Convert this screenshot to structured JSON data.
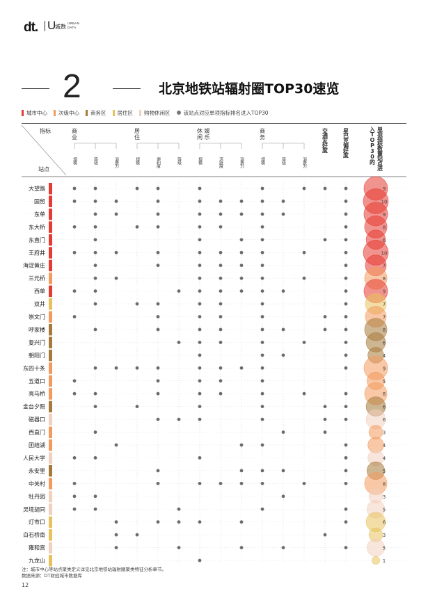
{
  "header": {
    "logo_dt": "dt.",
    "logo_u": "U",
    "logo_cn": "城数",
    "logo_en_1": "URBAN",
    "logo_en_2": "DATA"
  },
  "section": {
    "number": "2",
    "title": "北京地铁站辐射圈TOP30速览"
  },
  "legend": {
    "items": [
      {
        "label": "城市中心",
        "color": "#e63b32"
      },
      {
        "label": "次级中心",
        "color": "#f39b5e"
      },
      {
        "label": "商务区",
        "color": "#a67a3b"
      },
      {
        "label": "居住区",
        "color": "#e7c25c"
      },
      {
        "label": "购物休闲区",
        "color": "#f2d0be"
      }
    ],
    "dot_label": "该站点对应单项指标排名进入TOP30"
  },
  "footnote": {
    "line1": "注：城市中心等站点聚类定义详见北京地铁站辐射圈聚类特征分析章节。",
    "line2": "数据来源：DT财经城市数据库"
  },
  "page_number": "12",
  "chart_data": {
    "type": "table",
    "corner_top": "指标",
    "corner_bottom": "站点",
    "groups": [
      {
        "label": "商业",
        "lines": [
          "商",
          "业"
        ],
        "span": [
          0,
          2
        ]
      },
      {
        "label": "居住",
        "lines": [
          "居",
          "住"
        ],
        "span": [
          3,
          5
        ]
      },
      {
        "label": "休闲娱乐",
        "lines": [
          "休 娱",
          "闲 乐"
        ],
        "span": [
          6,
          8
        ]
      },
      {
        "label": "商务",
        "lines": [
          "商",
          "务"
        ],
        "span": [
          9,
          11
        ]
      }
    ],
    "columns": [
      "规模",
      "等级",
      "消费力",
      "规模",
      "便利度",
      "等级",
      "规模",
      "活跃度",
      "消费力",
      "规模",
      "等级",
      "消费力",
      "交通友好度",
      "星巴克偏好度"
    ],
    "count_header": "单项指标数量站点进入TOP30的",
    "category_colors": {
      "城市中心": "#e63b32",
      "次级中心": "#f39b5e",
      "商务区": "#a67a3b",
      "居住区": "#e7c25c",
      "购物休闲区": "#f2d0be"
    },
    "rows": [
      {
        "station": "大望路",
        "category": "城市中心",
        "count": 9,
        "dots": [
          0,
          1,
          3,
          4,
          6,
          9,
          11,
          12,
          13
        ]
      },
      {
        "station": "国贸",
        "category": "城市中心",
        "count": 10,
        "dots": [
          0,
          1,
          2,
          4,
          6,
          7,
          8,
          9,
          10,
          13
        ]
      },
      {
        "station": "东单",
        "category": "城市中心",
        "count": 9,
        "dots": [
          1,
          2,
          4,
          6,
          7,
          8,
          9,
          10,
          13
        ]
      },
      {
        "station": "东大桥",
        "category": "城市中心",
        "count": 8,
        "dots": [
          0,
          1,
          3,
          4,
          6,
          7,
          9,
          13
        ]
      },
      {
        "station": "东直门",
        "category": "城市中心",
        "count": 6,
        "dots": [
          1,
          6,
          8,
          9,
          12,
          13
        ]
      },
      {
        "station": "王府井",
        "category": "城市中心",
        "count": 10,
        "dots": [
          0,
          1,
          2,
          4,
          6,
          7,
          8,
          9,
          11,
          13
        ]
      },
      {
        "station": "海淀黄庄",
        "category": "城市中心",
        "count": 7,
        "dots": [
          1,
          4,
          6,
          7,
          8,
          9,
          13
        ]
      },
      {
        "station": "三元桥",
        "category": "次级中心",
        "count": 8,
        "dots": [
          1,
          2,
          6,
          7,
          8,
          9,
          11,
          13
        ]
      },
      {
        "station": "西单",
        "category": "城市中心",
        "count": 9,
        "dots": [
          0,
          1,
          5,
          6,
          7,
          8,
          9,
          10,
          13
        ]
      },
      {
        "station": "双井",
        "category": "居住区",
        "count": 7,
        "dots": [
          1,
          3,
          4,
          6,
          7,
          9,
          13
        ]
      },
      {
        "station": "崇文门",
        "category": "次级中心",
        "count": 7,
        "dots": [
          0,
          4,
          6,
          7,
          9,
          12,
          13
        ]
      },
      {
        "station": "呼家楼",
        "category": "商务区",
        "count": 8,
        "dots": [
          1,
          4,
          6,
          7,
          9,
          10,
          12,
          13
        ]
      },
      {
        "station": "复兴门",
        "category": "商务区",
        "count": 6,
        "dots": [
          5,
          6,
          7,
          9,
          11,
          13
        ]
      },
      {
        "station": "朝阳门",
        "category": "商务区",
        "count": 4,
        "dots": [
          6,
          9,
          10,
          13
        ]
      },
      {
        "station": "东四十条",
        "category": "次级中心",
        "count": 9,
        "dots": [
          1,
          2,
          3,
          4,
          6,
          7,
          8,
          9,
          13
        ]
      },
      {
        "station": "五道口",
        "category": "次级中心",
        "count": 5,
        "dots": [
          0,
          4,
          6,
          7,
          9
        ]
      },
      {
        "station": "亮马桥",
        "category": "次级中心",
        "count": 8,
        "dots": [
          0,
          1,
          4,
          6,
          7,
          9,
          11,
          13
        ]
      },
      {
        "station": "金台夕照",
        "category": "商务区",
        "count": 6,
        "dots": [
          1,
          3,
          6,
          9,
          12,
          13
        ]
      },
      {
        "station": "磁器口",
        "category": "购物休闲区",
        "count": 6,
        "dots": [
          4,
          5,
          6,
          9,
          12,
          13
        ]
      },
      {
        "station": "西直门",
        "category": "次级中心",
        "count": 3,
        "dots": [
          1,
          10,
          12
        ]
      },
      {
        "station": "团结湖",
        "category": "次级中心",
        "count": 4,
        "dots": [
          2,
          8,
          9,
          13
        ]
      },
      {
        "station": "人民大学",
        "category": "购物休闲区",
        "count": 4,
        "dots": [
          0,
          1,
          6,
          13
        ]
      },
      {
        "station": "永安里",
        "category": "商务区",
        "count": 5,
        "dots": [
          4,
          8,
          9,
          10,
          13
        ]
      },
      {
        "station": "中关村",
        "category": "次级中心",
        "count": 8,
        "dots": [
          0,
          4,
          6,
          7,
          8,
          9,
          11,
          13
        ]
      },
      {
        "station": "牡丹园",
        "category": "购物休闲区",
        "count": 3,
        "dots": [
          0,
          1,
          10
        ]
      },
      {
        "station": "灵境胡同",
        "category": "购物休闲区",
        "count": 5,
        "dots": [
          0,
          1,
          5,
          9,
          13
        ]
      },
      {
        "station": "灯市口",
        "category": "居住区",
        "count": 6,
        "dots": [
          2,
          4,
          5,
          6,
          8,
          13
        ]
      },
      {
        "station": "白石桥南",
        "category": "居住区",
        "count": 3,
        "dots": [
          2,
          3,
          12
        ]
      },
      {
        "station": "雍和宫",
        "category": "购物休闲区",
        "count": 5,
        "dots": [
          2,
          5,
          8,
          10,
          13
        ]
      },
      {
        "station": "九龙山",
        "category": "居住区",
        "count": 1,
        "dots": [
          6
        ]
      }
    ]
  }
}
